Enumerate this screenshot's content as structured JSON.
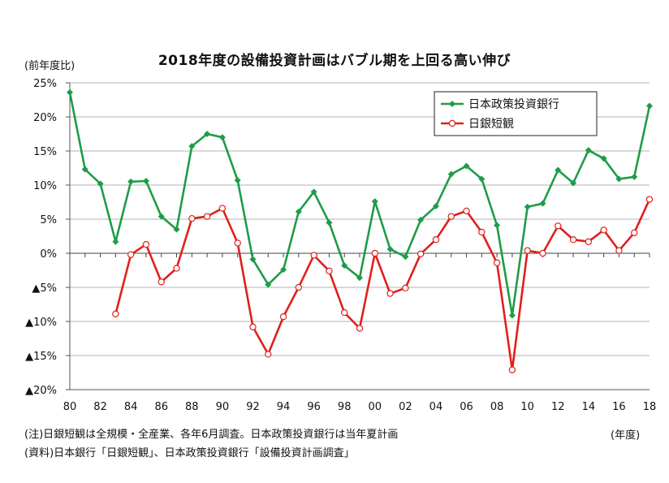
{
  "title": "2018年度の設備投資計画はバブル期を上回る高い伸び",
  "notes": {
    "note1": "(注)日銀短観は全規模・全産業、各年6月調査。日本政策投資銀行は当年夏計画",
    "note2": "(資料)日本銀行「日銀短観」、日本政策投資銀行「設備投資計画調査」"
  },
  "chart_data": {
    "type": "line",
    "title": "2018年度の設備投資計画はバブル期を上回る高い伸び",
    "ylabel": "(前年度比)",
    "xlabel": "(年度)",
    "ylim": [
      -20,
      25
    ],
    "xlim": [
      1980,
      2018
    ],
    "y_ticks": [
      25,
      20,
      15,
      10,
      5,
      0,
      -5,
      -10,
      -15,
      -20
    ],
    "y_tick_labels": [
      "25%",
      "20%",
      "15%",
      "10%",
      "5%",
      "0%",
      "▲5%",
      "▲10%",
      "▲15%",
      "▲20%"
    ],
    "x_ticks": [
      1980,
      1982,
      1984,
      1986,
      1988,
      1990,
      1992,
      1994,
      1996,
      1998,
      2000,
      2002,
      2004,
      2006,
      2008,
      2010,
      2012,
      2014,
      2016,
      2018
    ],
    "x_tick_labels": [
      "80",
      "82",
      "84",
      "86",
      "88",
      "90",
      "92",
      "94",
      "96",
      "98",
      "00",
      "02",
      "04",
      "06",
      "08",
      "10",
      "12",
      "14",
      "16",
      "18"
    ],
    "grid": "horizontal",
    "legend_position": "top-right",
    "series": [
      {
        "name": "日本政策投資銀行",
        "color": "#1e9c48",
        "marker": "diamond",
        "x": [
          1980,
          1981,
          1982,
          1983,
          1984,
          1985,
          1986,
          1987,
          1988,
          1989,
          1990,
          1991,
          1992,
          1993,
          1994,
          1995,
          1996,
          1997,
          1998,
          1999,
          2000,
          2001,
          2002,
          2003,
          2004,
          2005,
          2006,
          2007,
          2008,
          2009,
          2010,
          2011,
          2012,
          2013,
          2014,
          2015,
          2016,
          2017,
          2018
        ],
        "values": [
          23.6,
          12.3,
          10.2,
          1.7,
          10.5,
          10.6,
          5.4,
          3.5,
          15.7,
          17.5,
          17.0,
          10.7,
          -0.9,
          -4.6,
          -2.4,
          6.1,
          9.0,
          4.5,
          -1.8,
          -3.6,
          7.6,
          0.6,
          -0.5,
          4.9,
          6.9,
          11.6,
          12.8,
          10.9,
          4.1,
          -9.1,
          6.8,
          7.3,
          12.2,
          10.3,
          15.1,
          13.9,
          10.9,
          11.2,
          21.6
        ]
      },
      {
        "name": "日銀短観",
        "color": "#e0201b",
        "marker": "circle",
        "x": [
          1983,
          1984,
          1985,
          1986,
          1987,
          1988,
          1989,
          1990,
          1991,
          1992,
          1993,
          1994,
          1995,
          1996,
          1997,
          1998,
          1999,
          2000,
          2001,
          2002,
          2003,
          2004,
          2005,
          2006,
          2007,
          2008,
          2009,
          2010,
          2011,
          2012,
          2013,
          2014,
          2015,
          2016,
          2017,
          2018
        ],
        "values": [
          -8.9,
          -0.2,
          1.3,
          -4.2,
          -2.2,
          5.1,
          5.4,
          6.6,
          1.5,
          -10.8,
          -14.8,
          -9.3,
          -5.0,
          -0.3,
          -2.6,
          -8.7,
          -11.0,
          0.0,
          -5.9,
          -5.1,
          -0.1,
          2.0,
          5.4,
          6.2,
          3.1,
          -1.4,
          -17.1,
          0.4,
          0.0,
          4.0,
          2.0,
          1.7,
          3.4,
          0.4,
          3.0,
          7.9
        ]
      }
    ]
  }
}
